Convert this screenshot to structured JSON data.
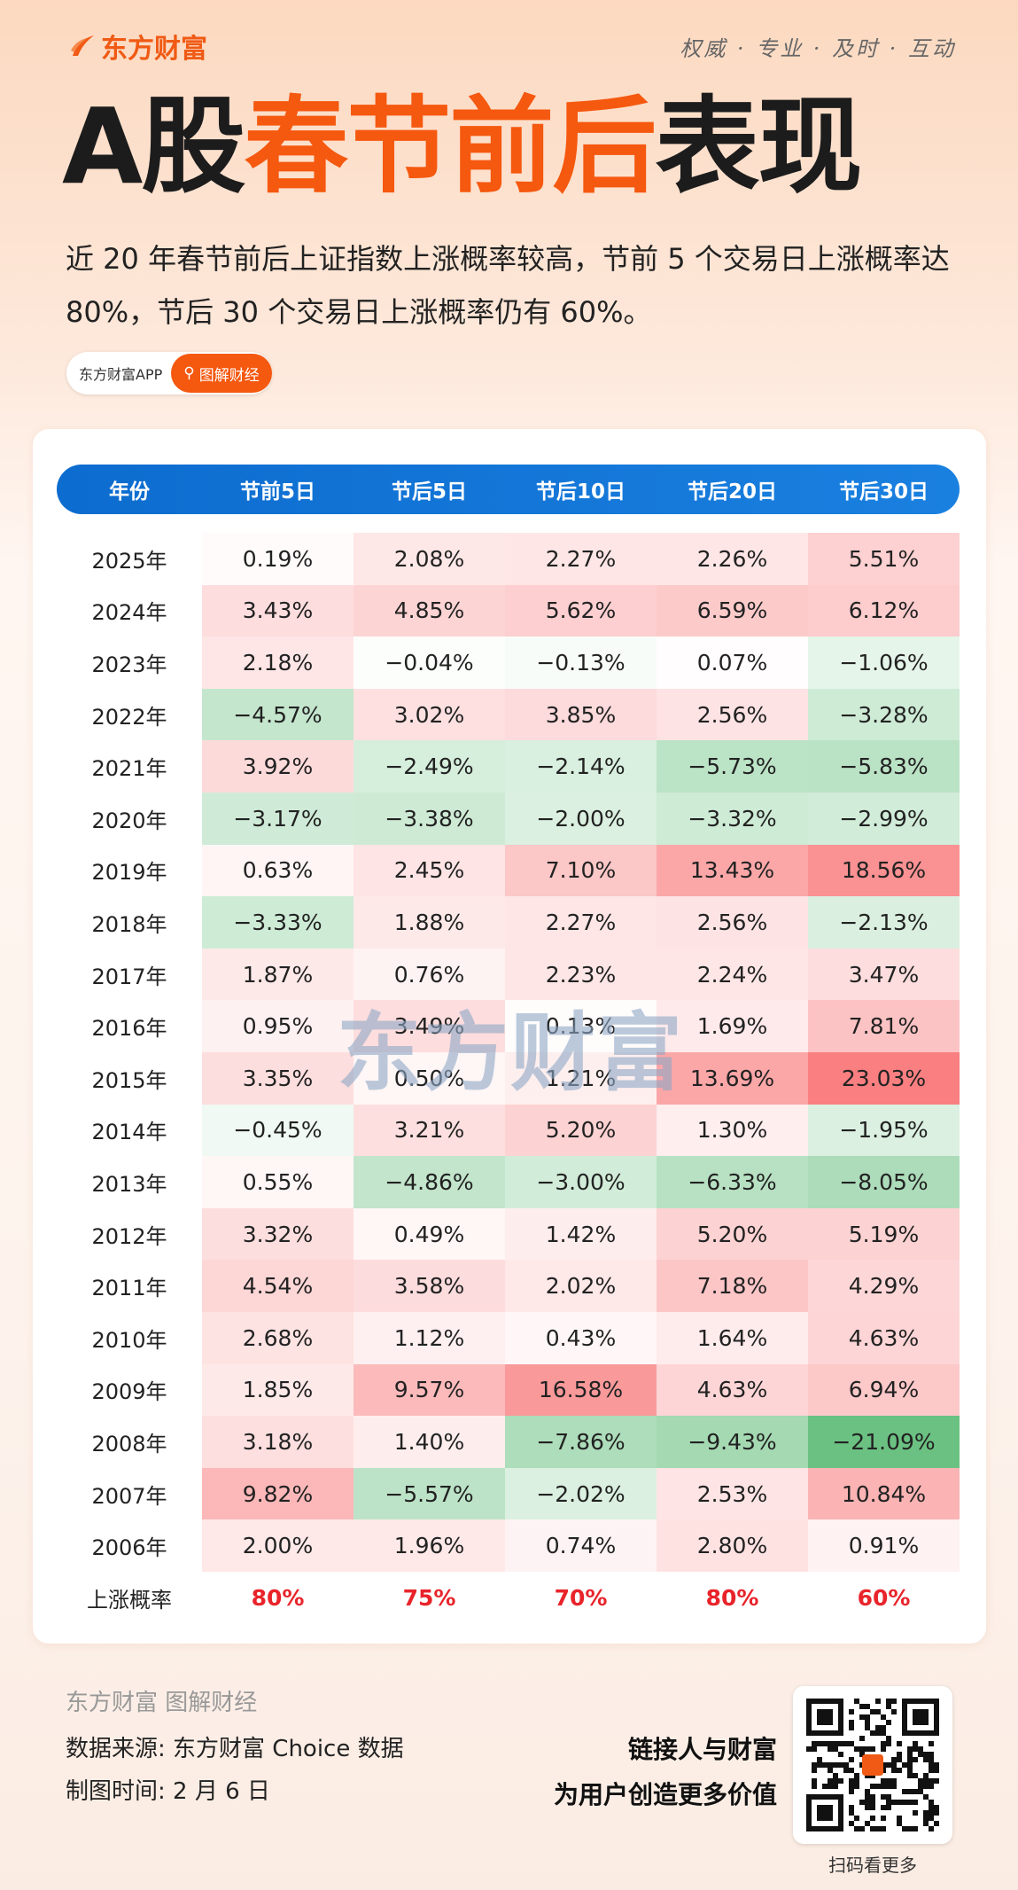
{
  "brand": {
    "name": "东方财富",
    "motto": "权威 · 专业 · 及时 · 互动",
    "accent": "#f5580f"
  },
  "title": {
    "part1": "A股",
    "highlight": "春节前后",
    "part2": "表现"
  },
  "subtitle": "近 20 年春节前后上证指数上涨概率较高，节前 5 个交易日上涨概率达 80%，节后 30 个交易日上涨概率仍有 60%。",
  "pill": {
    "app": "东方财富APP",
    "tag": "图解财经",
    "icon": "search-icon"
  },
  "table": {
    "headers": [
      "年份",
      "节前5日",
      "节后5日",
      "节后10日",
      "节后20日",
      "节后30日"
    ],
    "rows": [
      {
        "year": "2025年",
        "values": [
          "0.19%",
          "2.08%",
          "2.27%",
          "2.26%",
          "5.51%"
        ]
      },
      {
        "year": "2024年",
        "values": [
          "3.43%",
          "4.85%",
          "5.62%",
          "6.59%",
          "6.12%"
        ]
      },
      {
        "year": "2023年",
        "values": [
          "2.18%",
          "−0.04%",
          "−0.13%",
          "0.07%",
          "−1.06%"
        ]
      },
      {
        "year": "2022年",
        "values": [
          "−4.57%",
          "3.02%",
          "3.85%",
          "2.56%",
          "−3.28%"
        ]
      },
      {
        "year": "2021年",
        "values": [
          "3.92%",
          "−2.49%",
          "−2.14%",
          "−5.73%",
          "−5.83%"
        ]
      },
      {
        "year": "2020年",
        "values": [
          "−3.17%",
          "−3.38%",
          "−2.00%",
          "−3.32%",
          "−2.99%"
        ]
      },
      {
        "year": "2019年",
        "values": [
          "0.63%",
          "2.45%",
          "7.10%",
          "13.43%",
          "18.56%"
        ]
      },
      {
        "year": "2018年",
        "values": [
          "−3.33%",
          "1.88%",
          "2.27%",
          "2.56%",
          "−2.13%"
        ]
      },
      {
        "year": "2017年",
        "values": [
          "1.87%",
          "0.76%",
          "2.23%",
          "2.24%",
          "3.47%"
        ]
      },
      {
        "year": "2016年",
        "values": [
          "0.95%",
          "3.49%",
          "0.13%",
          "1.69%",
          "7.81%"
        ]
      },
      {
        "year": "2015年",
        "values": [
          "3.35%",
          "0.50%",
          "1.21%",
          "13.69%",
          "23.03%"
        ]
      },
      {
        "year": "2014年",
        "values": [
          "−0.45%",
          "3.21%",
          "5.20%",
          "1.30%",
          "−1.95%"
        ]
      },
      {
        "year": "2013年",
        "values": [
          "0.55%",
          "−4.86%",
          "−3.00%",
          "−6.33%",
          "−8.05%"
        ]
      },
      {
        "year": "2012年",
        "values": [
          "3.32%",
          "0.49%",
          "1.42%",
          "5.20%",
          "5.19%"
        ]
      },
      {
        "year": "2011年",
        "values": [
          "4.54%",
          "3.58%",
          "2.02%",
          "7.18%",
          "4.29%"
        ]
      },
      {
        "year": "2010年",
        "values": [
          "2.68%",
          "1.12%",
          "0.43%",
          "1.64%",
          "4.63%"
        ]
      },
      {
        "year": "2009年",
        "values": [
          "1.85%",
          "9.57%",
          "16.58%",
          "4.63%",
          "6.94%"
        ]
      },
      {
        "year": "2008年",
        "values": [
          "3.18%",
          "1.40%",
          "−7.86%",
          "−9.43%",
          "−21.09%"
        ]
      },
      {
        "year": "2007年",
        "values": [
          "9.82%",
          "−5.57%",
          "−2.02%",
          "2.53%",
          "10.84%"
        ]
      },
      {
        "year": "2006年",
        "values": [
          "2.00%",
          "1.96%",
          "0.74%",
          "2.80%",
          "0.91%"
        ]
      }
    ],
    "summary": {
      "label": "上涨概率",
      "values": [
        "80%",
        "75%",
        "70%",
        "80%",
        "60%"
      ]
    },
    "colors": {
      "positive": "#f8696b",
      "negative": "#63be7b",
      "header": "#0d6ccf"
    }
  },
  "watermark": "东方财富",
  "footer": {
    "logo": "东方财富 图解财经",
    "source": "数据来源: 东方财富 Choice 数据",
    "date": "制图时间: 2 月 6 日",
    "slogan1": "链接人与财富",
    "slogan2": "为用户创造更多价值",
    "qr_label": "扫码看更多"
  }
}
